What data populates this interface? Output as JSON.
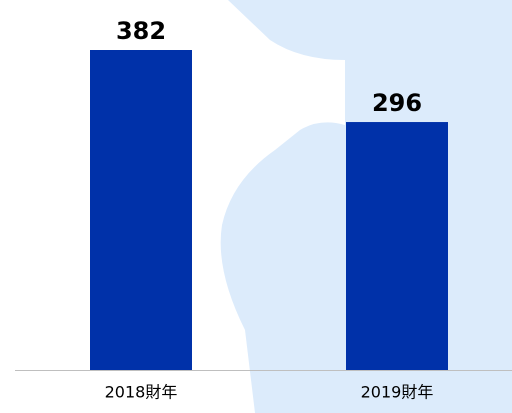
{
  "chart_data": {
    "type": "bar",
    "categories": [
      "2018財年",
      "2019財年"
    ],
    "values": [
      382,
      296
    ],
    "color": "#0031a9"
  }
}
